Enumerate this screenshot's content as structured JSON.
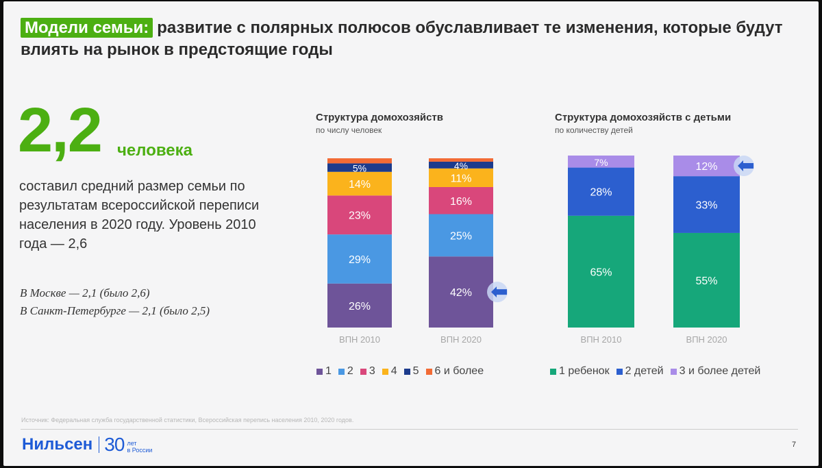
{
  "title": {
    "tag": "Модели семьи:",
    "text": "развитие с полярных полюсов обуславливает те изменения, которые будут влиять на рынок в предстоящие годы"
  },
  "highlight": {
    "number": "2,2",
    "unit": "человека",
    "description": "составил средний размер семьи по результатам всероссийской переписи населения в 2020 году. Уровень 2010 года — 2,6",
    "cities": [
      "В Москве — 2,1 (было 2,6)",
      "В Санкт-Петербурге — 2,1 (было 2,5)"
    ]
  },
  "colors": {
    "green": "#4caf12",
    "brand_blue": "#1e5bd6"
  },
  "chart_data": [
    {
      "type": "bar",
      "stacked": true,
      "title": "Структура домохозяйств",
      "subtitle": "по числу человек",
      "categories": [
        "ВПН 2010",
        "ВПН 2020"
      ],
      "ylim": [
        0,
        100
      ],
      "series": [
        {
          "name": "1",
          "color": "#6e5499",
          "values": [
            26,
            42
          ],
          "labels": [
            "26%",
            "42%"
          ]
        },
        {
          "name": "2",
          "color": "#4a98e3",
          "values": [
            29,
            25
          ],
          "labels": [
            "29%",
            "25%"
          ]
        },
        {
          "name": "3",
          "color": "#d9477b",
          "values": [
            23,
            16
          ],
          "labels": [
            "23%",
            "16%"
          ]
        },
        {
          "name": "4",
          "color": "#fbb31c",
          "values": [
            14,
            11
          ],
          "labels": [
            "14%",
            "11%"
          ]
        },
        {
          "name": "5",
          "color": "#1c3b8c",
          "values": [
            5,
            4
          ],
          "labels": [
            "5%",
            "4%"
          ]
        },
        {
          "name": "6 и более",
          "color": "#f26b35",
          "values": [
            3,
            2
          ],
          "labels": [
            "",
            ""
          ]
        }
      ],
      "highlight": {
        "category": "ВПН 2020",
        "series": "1"
      }
    },
    {
      "type": "bar",
      "stacked": true,
      "title": "Структура домохозяйств с детьми",
      "subtitle": "по количеству детей",
      "categories": [
        "ВПН 2010",
        "ВПН 2020"
      ],
      "ylim": [
        0,
        100
      ],
      "series": [
        {
          "name": "1 ребенок",
          "color": "#16a77a",
          "values": [
            65,
            55
          ],
          "labels": [
            "65%",
            "55%"
          ]
        },
        {
          "name": "2 детей",
          "color": "#2c5fcf",
          "values": [
            28,
            33
          ],
          "labels": [
            "28%",
            "33%"
          ]
        },
        {
          "name": "3 и более детей",
          "color": "#a98ce8",
          "values": [
            7,
            12
          ],
          "labels": [
            "7%",
            "12%"
          ]
        }
      ],
      "highlight": {
        "category": "ВПН 2020",
        "series": "3 и более детей"
      }
    }
  ],
  "footer": {
    "source": "Источник: Федеральная служба государственной статистики, Всероссийская перепись населения 2010, 2020 годов.",
    "logo_name": "Нильсен",
    "logo_30": "30",
    "logo_small_1": "лет",
    "logo_small_2": "в России",
    "page_number": "7"
  }
}
